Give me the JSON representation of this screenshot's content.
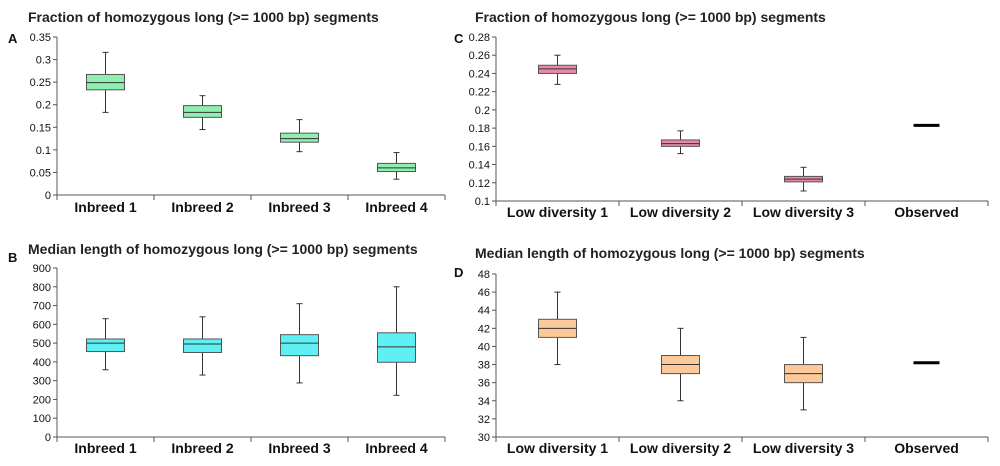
{
  "chart_data": [
    {
      "panel_label": "A",
      "type": "box",
      "title": "Fraction of homozygous long (>= 1000 bp) segments",
      "color": "#8eefb0",
      "ylim": [
        0,
        0.35
      ],
      "yticks": [
        "0",
        "0.05",
        "0.1",
        "0.15",
        "0.2",
        "0.25",
        "0.3",
        "0.35"
      ],
      "categories": [
        "Inbreed 1",
        "Inbreed 2",
        "Inbreed 3",
        "Inbreed 4"
      ],
      "boxes": [
        {
          "min": 0.183,
          "q1": 0.233,
          "median": 0.249,
          "q3": 0.267,
          "max": 0.316
        },
        {
          "min": 0.145,
          "q1": 0.172,
          "median": 0.183,
          "q3": 0.198,
          "max": 0.22
        },
        {
          "min": 0.096,
          "q1": 0.117,
          "median": 0.125,
          "q3": 0.137,
          "max": 0.167
        },
        {
          "min": 0.035,
          "q1": 0.052,
          "median": 0.06,
          "q3": 0.07,
          "max": 0.094
        }
      ]
    },
    {
      "panel_label": "B",
      "type": "box",
      "title": "Median  length of homozygous long (>= 1000 bp) segments",
      "color": "#5ff0f3",
      "ylim": [
        0,
        900
      ],
      "yticks": [
        "0",
        "100",
        "200",
        "300",
        "400",
        "500",
        "600",
        "700",
        "800",
        "900"
      ],
      "categories": [
        "Inbreed 1",
        "Inbreed 2",
        "Inbreed 3",
        "Inbreed 4"
      ],
      "boxes": [
        {
          "min": 358,
          "q1": 455,
          "median": 500,
          "q3": 522,
          "max": 630
        },
        {
          "min": 330,
          "q1": 450,
          "median": 495,
          "q3": 522,
          "max": 640
        },
        {
          "min": 288,
          "q1": 433,
          "median": 500,
          "q3": 545,
          "max": 710
        },
        {
          "min": 222,
          "q1": 398,
          "median": 480,
          "q3": 555,
          "max": 800
        }
      ]
    },
    {
      "panel_label": "C",
      "type": "box",
      "title": "Fraction of homozygous long (>= 1000 bp) segments",
      "color": "#e88aa5",
      "ylim": [
        0.1,
        0.28
      ],
      "yticks": [
        "0.1",
        "0.12",
        "0.14",
        "0.16",
        "0.18",
        "0.2",
        "0.22",
        "0.24",
        "0.26",
        "0.28"
      ],
      "categories": [
        "Low diversity 1",
        "Low diversity 2",
        "Low diversity 3",
        "Observed"
      ],
      "boxes": [
        {
          "min": 0.228,
          "q1": 0.24,
          "median": 0.245,
          "q3": 0.249,
          "max": 0.26
        },
        {
          "min": 0.152,
          "q1": 0.16,
          "median": 0.163,
          "q3": 0.167,
          "max": 0.177
        },
        {
          "min": 0.111,
          "q1": 0.121,
          "median": 0.124,
          "q3": 0.127,
          "max": 0.137
        },
        null
      ],
      "observed": 0.183
    },
    {
      "panel_label": "D",
      "type": "box",
      "title": "Median  length of homozygous long (>= 1000 bp) segments",
      "color": "#fcc99a",
      "ylim": [
        30,
        48
      ],
      "yticks": [
        "30",
        "32",
        "34",
        "36",
        "38",
        "40",
        "42",
        "44",
        "46",
        "48"
      ],
      "categories": [
        "Low diversity 1",
        "Low diversity 2",
        "Low diversity 3",
        "Observed"
      ],
      "boxes": [
        {
          "min": 38,
          "q1": 41,
          "median": 42,
          "q3": 43,
          "max": 46
        },
        {
          "min": 34,
          "q1": 37,
          "median": 38,
          "q3": 39,
          "max": 42
        },
        {
          "min": 33,
          "q1": 36,
          "median": 37,
          "q3": 38,
          "max": 41
        },
        null
      ],
      "observed": 38.2
    }
  ]
}
